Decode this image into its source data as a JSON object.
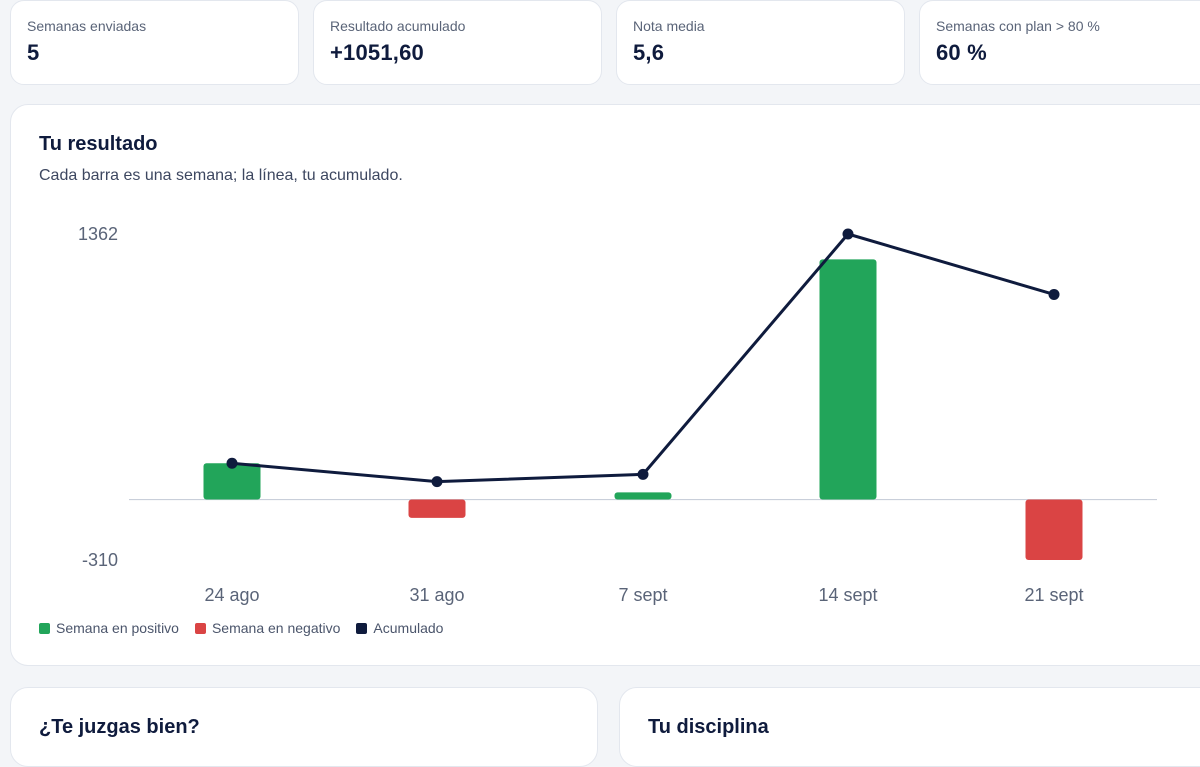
{
  "stats": [
    {
      "label": "Semanas enviadas",
      "value": "5"
    },
    {
      "label": "Resultado acumulado",
      "value": "+1051,60"
    },
    {
      "label": "Nota media",
      "value": "5,6"
    },
    {
      "label": "Semanas con plan > 80 %",
      "value": "60 %"
    }
  ],
  "chart": {
    "title": "Tu resultado",
    "subtitle": "Cada barra es una semana; la línea, tu acumulado.",
    "legend": [
      {
        "label": "Semana en positivo",
        "color": "#22a55a"
      },
      {
        "label": "Semana en negativo",
        "color": "#da4444"
      },
      {
        "label": "Acumulado",
        "color": "#0f1b3d"
      }
    ]
  },
  "chart_data": {
    "type": "bar",
    "categories": [
      "24 ago",
      "31 ago",
      "7 sept",
      "14 sept",
      "21 sept"
    ],
    "series": [
      {
        "values": [
          186,
          -94,
          37,
          1232,
          -310
        ]
      },
      {
        "values": [
          186,
          92,
          129,
          1362,
          1052
        ]
      }
    ],
    "ylim": [
      -310,
      1362
    ],
    "y_tick_labels": [
      "1362",
      "-310"
    ],
    "colors": {
      "positive": "#22a55a",
      "negative": "#da4444",
      "line": "#0f1b3d",
      "zero_line": "#c9cfda"
    },
    "grid": false,
    "legend_position": "bottom-left"
  },
  "sections": [
    {
      "title": "¿Te juzgas bien?"
    },
    {
      "title": "Tu disciplina"
    }
  ]
}
